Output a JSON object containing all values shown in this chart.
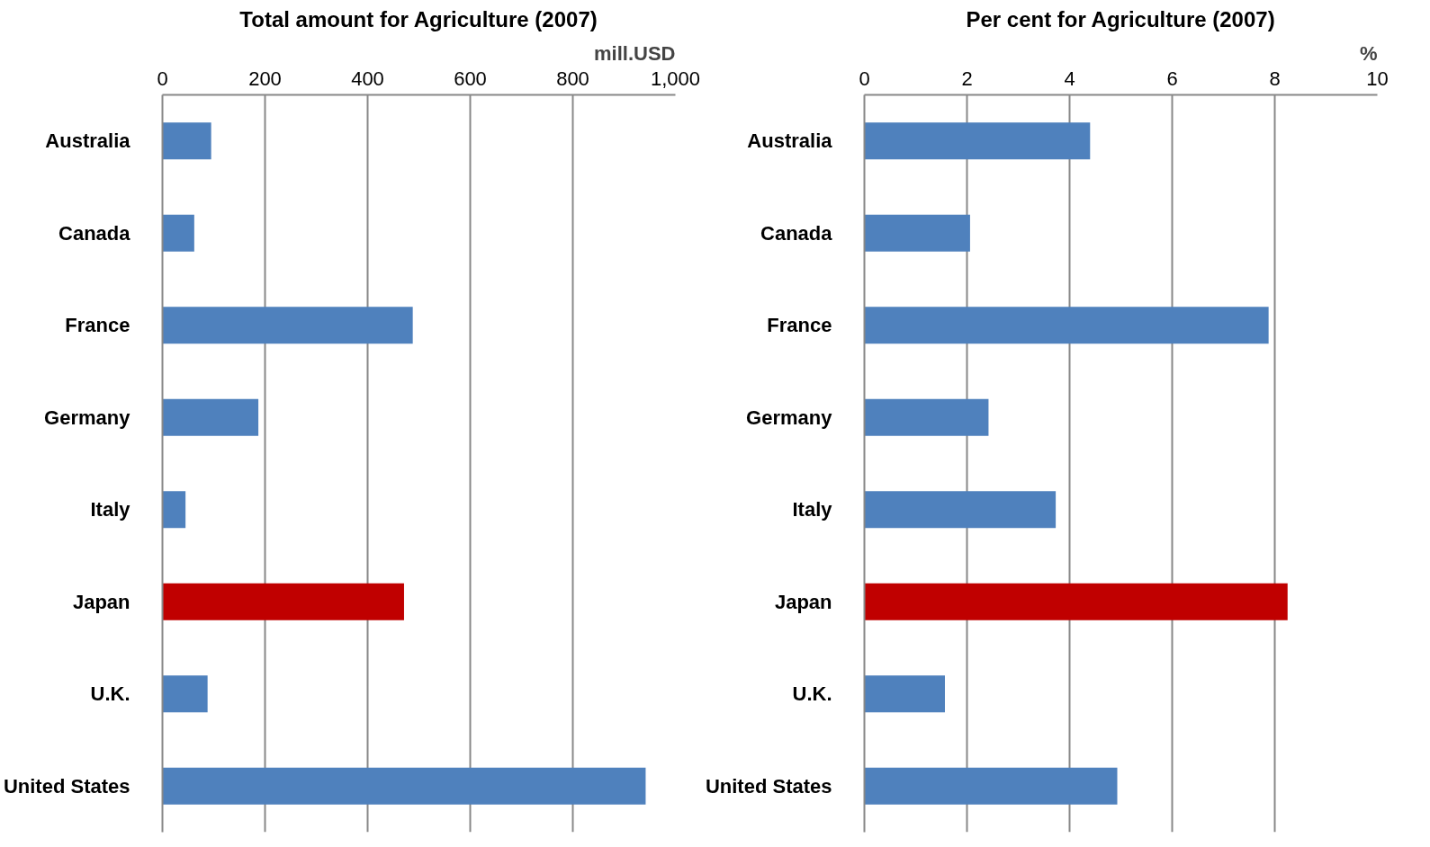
{
  "chart_data": [
    {
      "type": "bar",
      "orientation": "horizontal",
      "title": "Total amount for Agriculture (2007)",
      "xlabel": "mill.USD",
      "categories": [
        "Australia",
        "Canada",
        "France",
        "Germany",
        "Italy",
        "Japan",
        "U.K.",
        "United States"
      ],
      "values": [
        95,
        62,
        488,
        187,
        45,
        471,
        88,
        942
      ],
      "colors": [
        "#4f81bd",
        "#4f81bd",
        "#4f81bd",
        "#4f81bd",
        "#4f81bd",
        "#c00000",
        "#4f81bd",
        "#4f81bd"
      ],
      "xlim": [
        0,
        1000
      ],
      "xticks": [
        0,
        200,
        400,
        600,
        800,
        {
          "value": 1000,
          "label": "1,000"
        }
      ],
      "grid": "x"
    },
    {
      "type": "bar",
      "orientation": "horizontal",
      "title": "Per cent for Agriculture (2007)",
      "xlabel": "%",
      "categories": [
        "Australia",
        "Canada",
        "France",
        "Germany",
        "Italy",
        "Japan",
        "U.K.",
        "United States"
      ],
      "values": [
        4.4,
        2.06,
        7.88,
        2.42,
        3.73,
        8.25,
        1.57,
        4.93
      ],
      "colors": [
        "#4f81bd",
        "#4f81bd",
        "#4f81bd",
        "#4f81bd",
        "#4f81bd",
        "#c00000",
        "#4f81bd",
        "#4f81bd"
      ],
      "xlim": [
        0,
        10
      ],
      "xticks": [
        0,
        2,
        4,
        6,
        8,
        10
      ],
      "grid": "x"
    }
  ]
}
